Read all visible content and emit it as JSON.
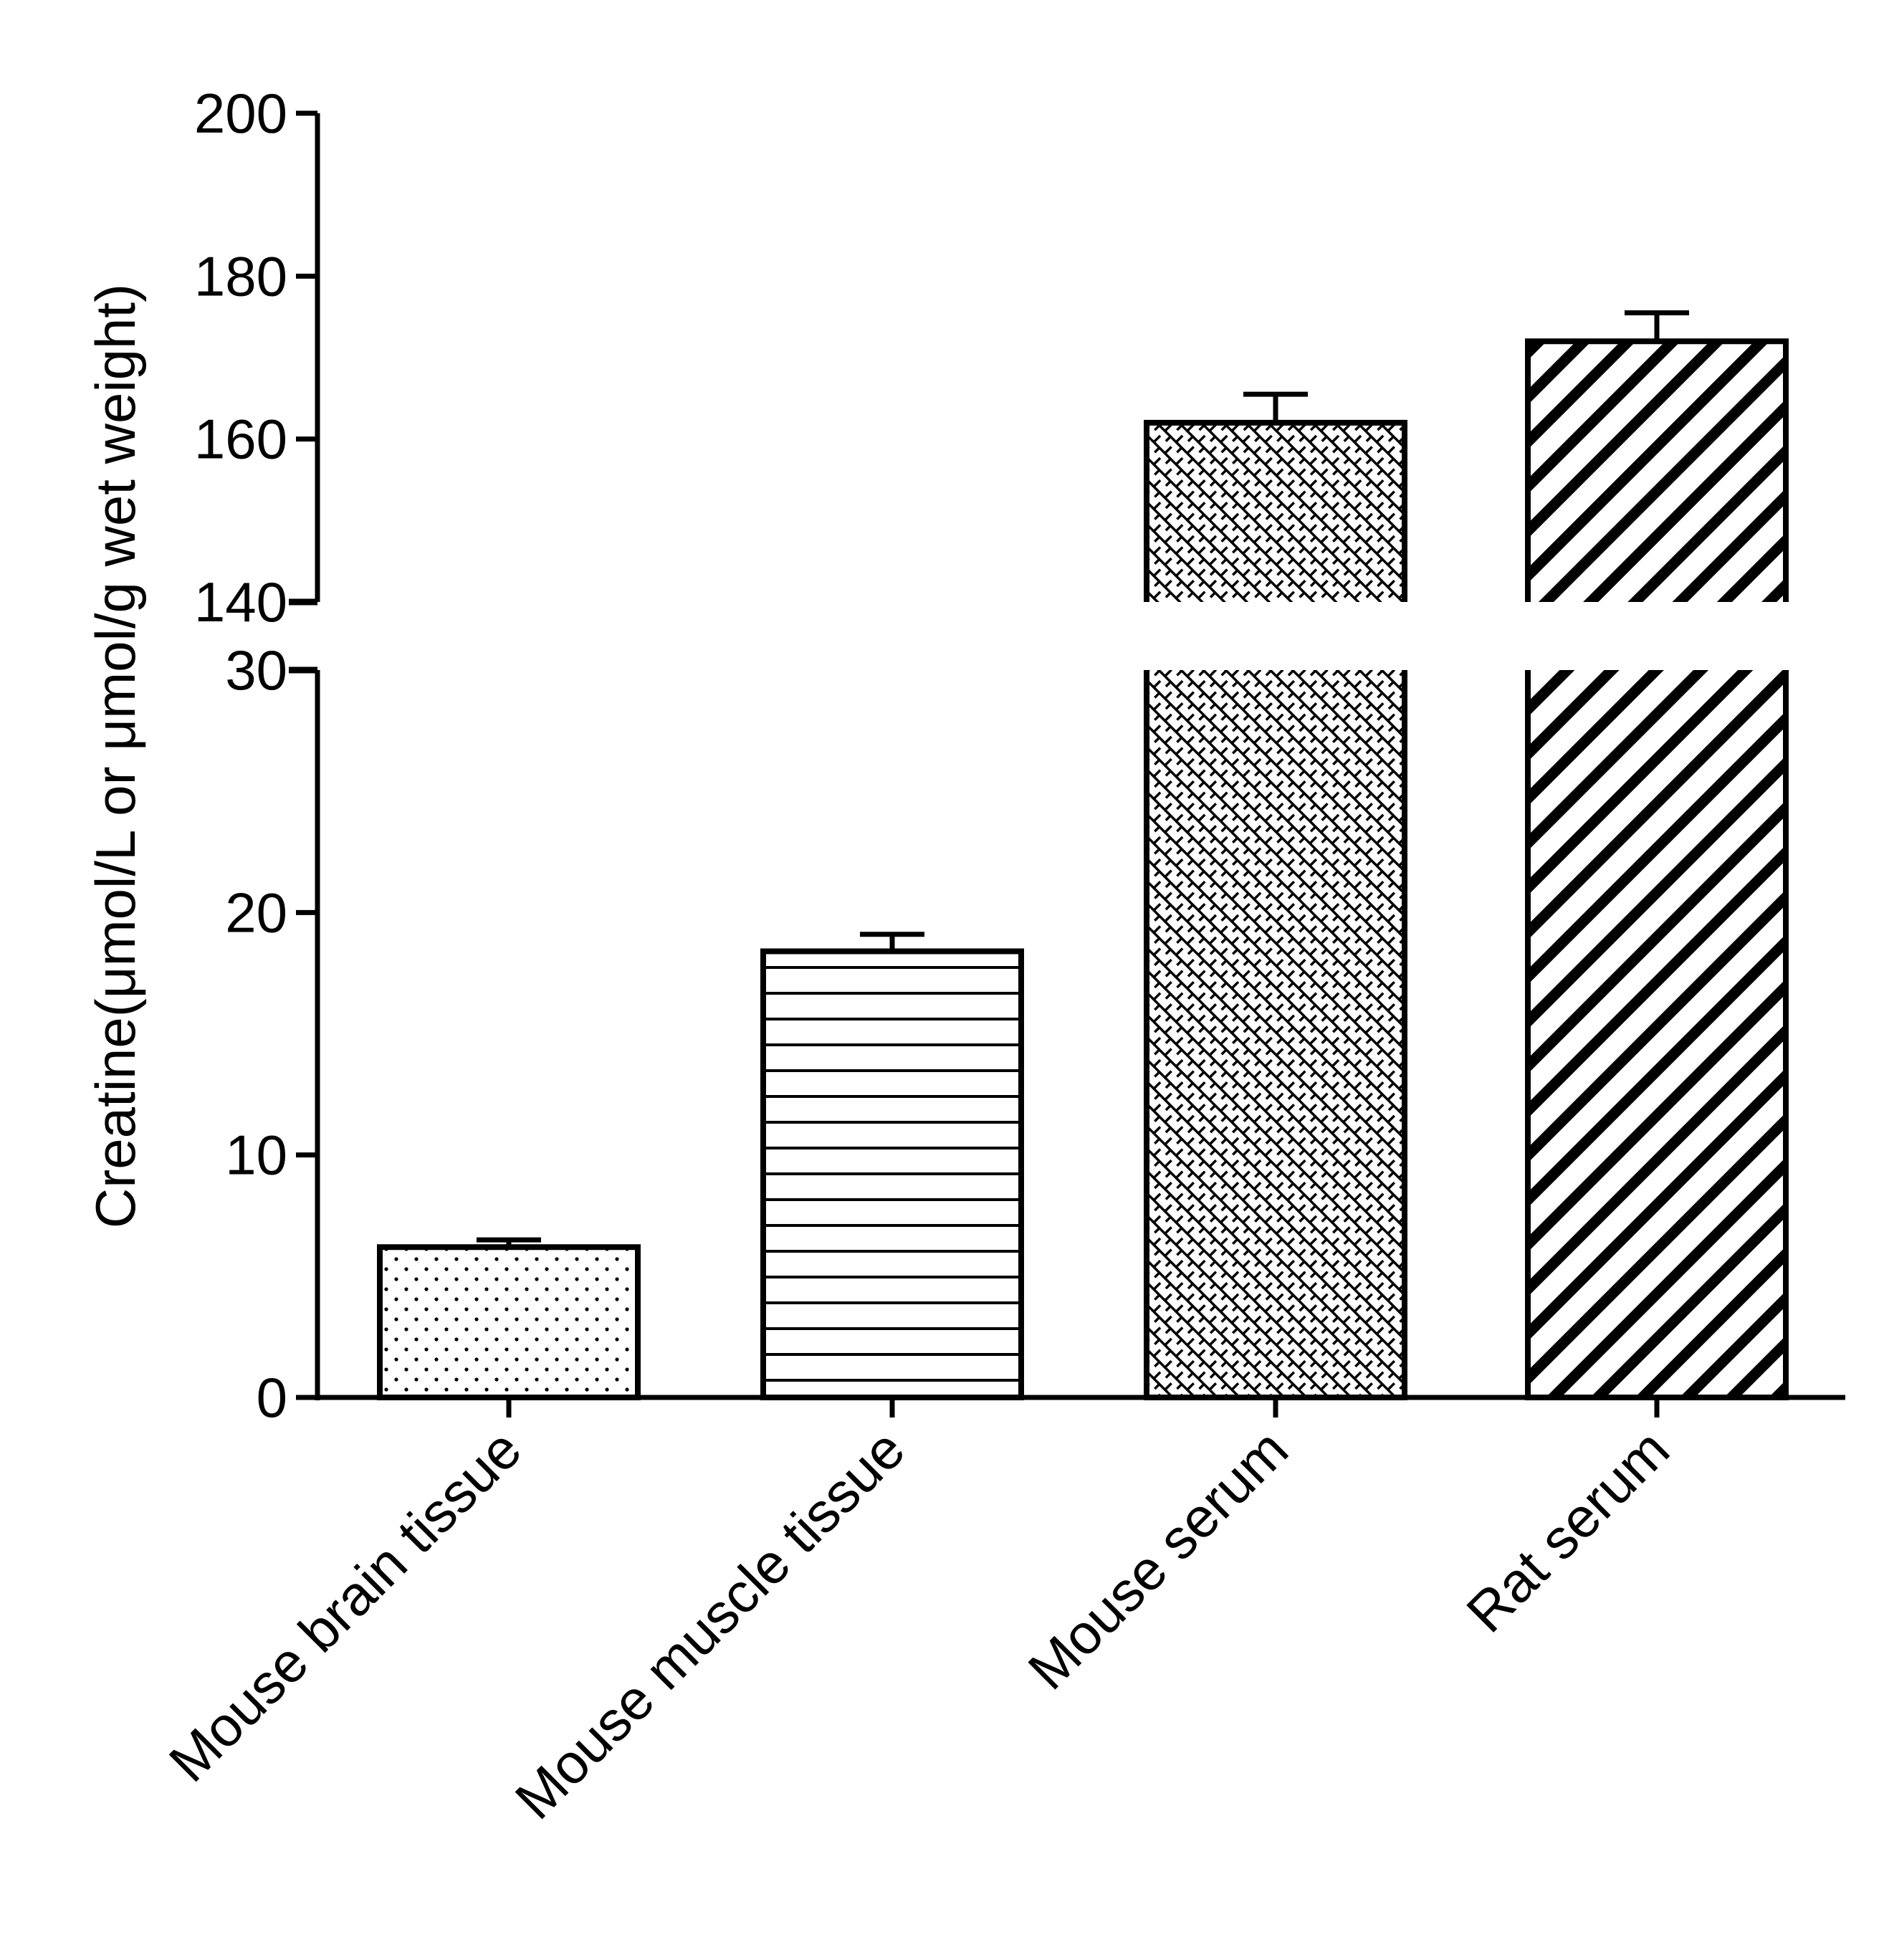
{
  "chart_data": {
    "type": "bar",
    "title": "",
    "xlabel": "",
    "ylabel": "Creatine(μmol/L or μmol/g wet weight)",
    "y_axis_break": {
      "lower_segment": {
        "ylim": [
          0,
          30
        ],
        "ticks": [
          0,
          10,
          20,
          30
        ]
      },
      "upper_segment": {
        "ylim": [
          140,
          200
        ],
        "ticks": [
          140,
          160,
          180,
          200
        ]
      }
    },
    "categories": [
      "Mouse brain tissue",
      "Mouse muscle tissue",
      "Mouse serum",
      "Rat serum"
    ],
    "series": [
      {
        "name": "Creatine",
        "values": [
          6.2,
          18.4,
          162,
          172
        ],
        "error_upper": [
          0.3,
          0.7,
          3.5,
          3.5
        ],
        "patterns": [
          "dots",
          "horizontal-lines",
          "crosshatch",
          "diagonal-stripes"
        ]
      }
    ],
    "grid": false,
    "legend": "none",
    "colors": {
      "stroke": "#000000",
      "fill": "#ffffff"
    }
  }
}
